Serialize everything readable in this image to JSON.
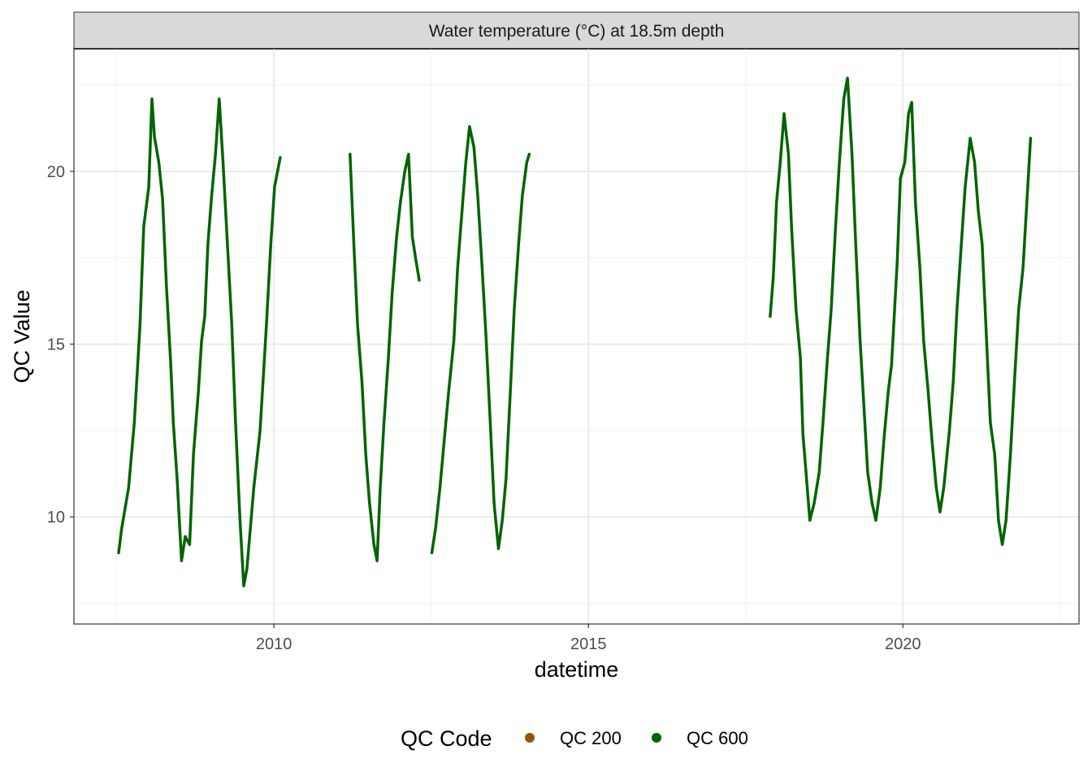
{
  "chart_data": {
    "type": "line",
    "strip_title": "Water temperature (°C) at 18.5m depth",
    "xlabel": "datetime",
    "ylabel": "QC Value",
    "xlim": [
      2006.82,
      2022.8
    ],
    "ylim": [
      6.9,
      23.55
    ],
    "x_ticks": [
      2010,
      2015,
      2020
    ],
    "x_tick_labels": [
      "2010",
      "2015",
      "2020"
    ],
    "y_ticks": [
      10,
      15,
      20
    ],
    "y_tick_labels": [
      "10",
      "15",
      "20"
    ],
    "x_minor": [
      2007.5,
      2012.5,
      2017.5,
      2022.5
    ],
    "y_minor": [
      7.5,
      12.5,
      17.5,
      22.5
    ],
    "grid": true,
    "legend": {
      "title": "QC Code",
      "placement": "bottom",
      "entries": [
        {
          "label": "QC 200",
          "color": "#8b5a00"
        },
        {
          "label": "QC 600",
          "color": "#006400"
        }
      ]
    },
    "series": [
      {
        "name": "QC 600",
        "color": "#006400",
        "segments": [
          [
            [
              2007.53,
              8.96
            ],
            [
              2007.58,
              9.67
            ],
            [
              2007.69,
              10.85
            ],
            [
              2007.78,
              12.73
            ],
            [
              2007.87,
              15.55
            ],
            [
              2007.93,
              18.4
            ],
            [
              2008.01,
              19.55
            ],
            [
              2008.06,
              22.1
            ],
            [
              2008.1,
              21.0
            ],
            [
              2008.17,
              20.26
            ],
            [
              2008.23,
              19.2
            ],
            [
              2008.29,
              16.7
            ],
            [
              2008.36,
              14.4
            ],
            [
              2008.4,
              12.73
            ],
            [
              2008.46,
              11.1
            ],
            [
              2008.53,
              8.73
            ],
            [
              2008.59,
              9.43
            ],
            [
              2008.66,
              9.2
            ],
            [
              2008.72,
              11.8
            ],
            [
              2008.8,
              13.67
            ],
            [
              2008.85,
              15.1
            ],
            [
              2008.9,
              15.8
            ],
            [
              2008.95,
              17.9
            ],
            [
              2009.01,
              19.3
            ],
            [
              2009.07,
              20.5
            ],
            [
              2009.13,
              22.1
            ],
            [
              2009.19,
              20.26
            ],
            [
              2009.26,
              17.9
            ],
            [
              2009.33,
              15.55
            ],
            [
              2009.39,
              12.73
            ],
            [
              2009.46,
              9.9
            ],
            [
              2009.52,
              8.0
            ],
            [
              2009.57,
              8.5
            ],
            [
              2009.68,
              10.85
            ],
            [
              2009.78,
              12.5
            ],
            [
              2009.88,
              15.55
            ],
            [
              2009.95,
              17.9
            ],
            [
              2010.01,
              19.55
            ],
            [
              2010.1,
              20.4
            ]
          ],
          [
            [
              2011.21,
              20.5
            ],
            [
              2011.27,
              17.9
            ],
            [
              2011.33,
              15.55
            ],
            [
              2011.4,
              13.9
            ],
            [
              2011.46,
              11.8
            ],
            [
              2011.52,
              10.4
            ],
            [
              2011.59,
              9.2
            ],
            [
              2011.64,
              8.73
            ],
            [
              2011.69,
              10.85
            ],
            [
              2011.75,
              12.73
            ],
            [
              2011.82,
              14.6
            ],
            [
              2011.88,
              16.5
            ],
            [
              2011.95,
              18.1
            ],
            [
              2012.01,
              19.1
            ],
            [
              2012.08,
              20.0
            ],
            [
              2012.14,
              20.5
            ],
            [
              2012.2,
              18.1
            ],
            [
              2012.26,
              17.4
            ],
            [
              2012.31,
              16.85
            ]
          ],
          [
            [
              2012.51,
              8.96
            ],
            [
              2012.57,
              9.67
            ],
            [
              2012.64,
              10.85
            ],
            [
              2012.71,
              12.26
            ],
            [
              2012.78,
              13.67
            ],
            [
              2012.86,
              15.1
            ],
            [
              2012.92,
              17.2
            ],
            [
              2012.98,
              18.6
            ],
            [
              2013.05,
              20.26
            ],
            [
              2013.11,
              21.3
            ],
            [
              2013.18,
              20.7
            ],
            [
              2013.24,
              19.3
            ],
            [
              2013.31,
              17.2
            ],
            [
              2013.37,
              15.3
            ],
            [
              2013.44,
              12.73
            ],
            [
              2013.5,
              10.4
            ],
            [
              2013.57,
              9.08
            ],
            [
              2013.63,
              9.9
            ],
            [
              2013.69,
              11.1
            ],
            [
              2013.76,
              13.67
            ],
            [
              2013.82,
              16.0
            ],
            [
              2013.89,
              17.9
            ],
            [
              2013.95,
              19.3
            ],
            [
              2014.02,
              20.26
            ],
            [
              2014.06,
              20.5
            ]
          ],
          [
            [
              2017.89,
              15.8
            ],
            [
              2017.94,
              16.96
            ],
            [
              2017.99,
              19.1
            ],
            [
              2018.05,
              20.26
            ],
            [
              2018.11,
              21.67
            ],
            [
              2018.18,
              20.5
            ],
            [
              2018.23,
              18.4
            ],
            [
              2018.3,
              16.0
            ],
            [
              2018.37,
              14.6
            ],
            [
              2018.41,
              12.4
            ],
            [
              2018.46,
              11.3
            ],
            [
              2018.52,
              9.9
            ],
            [
              2018.59,
              10.4
            ],
            [
              2018.67,
              11.3
            ],
            [
              2018.73,
              12.73
            ],
            [
              2018.8,
              14.6
            ],
            [
              2018.86,
              16.0
            ],
            [
              2018.93,
              18.4
            ],
            [
              2018.99,
              20.26
            ],
            [
              2019.06,
              22.1
            ],
            [
              2019.12,
              22.7
            ],
            [
              2019.19,
              20.5
            ],
            [
              2019.25,
              17.9
            ],
            [
              2019.32,
              15.1
            ],
            [
              2019.38,
              13.2
            ],
            [
              2019.44,
              11.3
            ],
            [
              2019.51,
              10.4
            ],
            [
              2019.57,
              9.9
            ],
            [
              2019.64,
              10.85
            ],
            [
              2019.7,
              12.26
            ],
            [
              2019.77,
              13.67
            ],
            [
              2019.82,
              14.4
            ],
            [
              2019.91,
              17.4
            ],
            [
              2019.96,
              19.8
            ],
            [
              2020.03,
              20.26
            ],
            [
              2020.09,
              21.67
            ],
            [
              2020.14,
              22.0
            ],
            [
              2020.2,
              19.1
            ],
            [
              2020.27,
              17.2
            ],
            [
              2020.33,
              15.1
            ],
            [
              2020.4,
              13.67
            ],
            [
              2020.46,
              12.26
            ],
            [
              2020.53,
              10.85
            ],
            [
              2020.59,
              10.14
            ],
            [
              2020.65,
              10.85
            ],
            [
              2020.74,
              12.5
            ],
            [
              2020.8,
              13.9
            ],
            [
              2020.86,
              16.0
            ],
            [
              2020.93,
              17.9
            ],
            [
              2020.99,
              19.55
            ],
            [
              2021.07,
              20.96
            ],
            [
              2021.14,
              20.26
            ],
            [
              2021.2,
              18.85
            ],
            [
              2021.26,
              17.9
            ],
            [
              2021.32,
              15.55
            ],
            [
              2021.39,
              12.73
            ],
            [
              2021.46,
              11.8
            ],
            [
              2021.52,
              9.9
            ],
            [
              2021.58,
              9.2
            ],
            [
              2021.64,
              9.9
            ],
            [
              2021.71,
              11.8
            ],
            [
              2021.78,
              14.1
            ],
            [
              2021.84,
              16.0
            ],
            [
              2021.91,
              17.2
            ],
            [
              2021.97,
              19.1
            ],
            [
              2022.03,
              20.96
            ]
          ]
        ]
      },
      {
        "name": "QC 200",
        "color": "#8b5a00",
        "segments": []
      }
    ]
  }
}
